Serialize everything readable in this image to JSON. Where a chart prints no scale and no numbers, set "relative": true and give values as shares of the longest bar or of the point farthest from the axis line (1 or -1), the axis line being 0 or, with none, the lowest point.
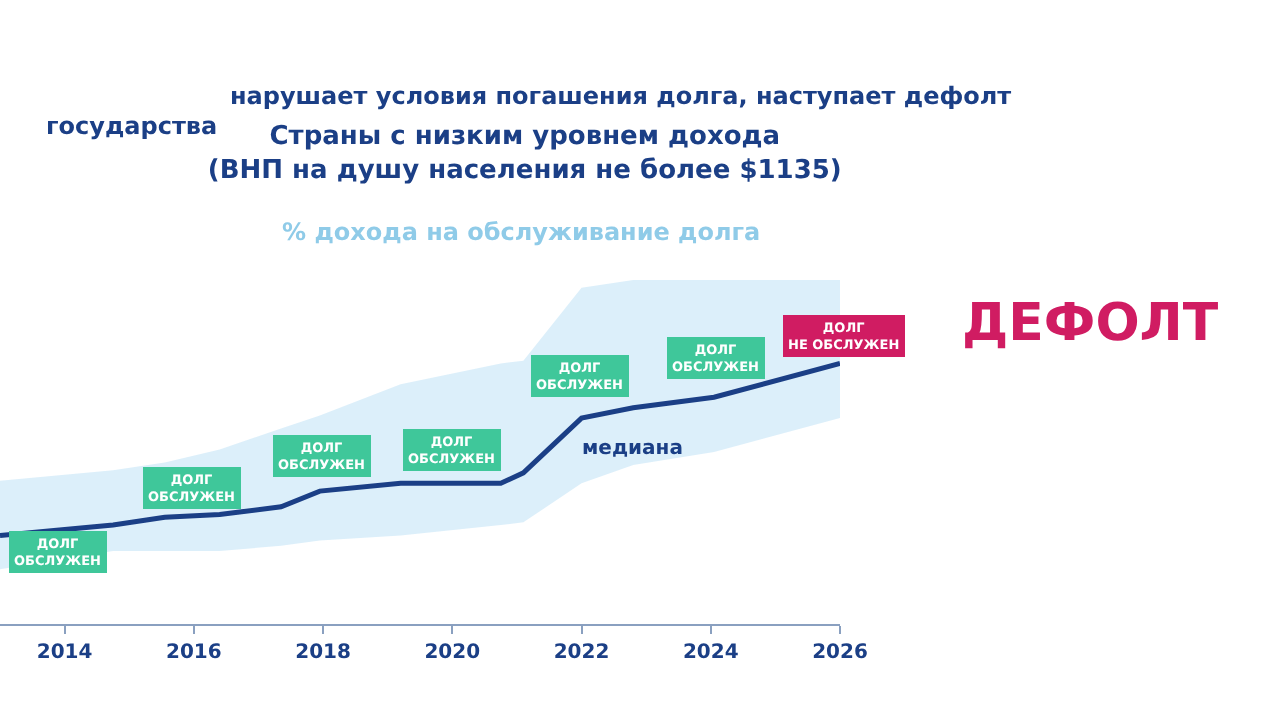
{
  "chart_data": {
    "type": "line",
    "relative": true,
    "title": "Страны с низким уровнем дохода\n(ВНП на душу населения не более $1135)",
    "subtitle": "% дохода на обслуживание долга",
    "x": [
      2013.0,
      2014.75,
      2015.55,
      2016.4,
      2017.35,
      2017.95,
      2019.2,
      2020.75,
      2021.1,
      2022.0,
      2022.8,
      2024.05,
      2026
    ],
    "xlim": [
      2013,
      2026
    ],
    "xticks": [
      2014,
      2016,
      2018,
      2020,
      2022,
      2024,
      2026
    ],
    "series": [
      {
        "name": "медиана",
        "color": "#1b3f86",
        "values": [
          0.34,
          0.38,
          0.41,
          0.42,
          0.45,
          0.51,
          0.54,
          0.54,
          0.58,
          0.79,
          0.83,
          0.87,
          1
        ],
        "lower": [
          0.21,
          0.28,
          0.28,
          0.28,
          0.3,
          0.32,
          0.34,
          0.38,
          0.39,
          0.54,
          0.61,
          0.66,
          0.79
        ],
        "upper": [
          0.55,
          0.59,
          0.62,
          0.67,
          0.75,
          0.8,
          0.92,
          1,
          1.01,
          1.29,
          1.32,
          1.32,
          1.32
        ]
      }
    ],
    "annotations": [
      "нарушает условия погашения долга, наступает дефолт",
      "государства",
      "ДЕФОЛТ",
      "ДОЛГ\nОБСЛУЖЕН",
      "ДОЛГ\nОБСЛУЖЕН",
      "ДОЛГ\nОБСЛУЖЕН",
      "ДОЛГ\nОБСЛУЖЕН",
      "ДОЛГ\nОБСЛУЖЕН",
      "ДОЛГ\nОБСЛУЖЕН",
      "ДОЛГ\nНЕ ОБСЛУЖЕН"
    ],
    "legend": false
  }
}
